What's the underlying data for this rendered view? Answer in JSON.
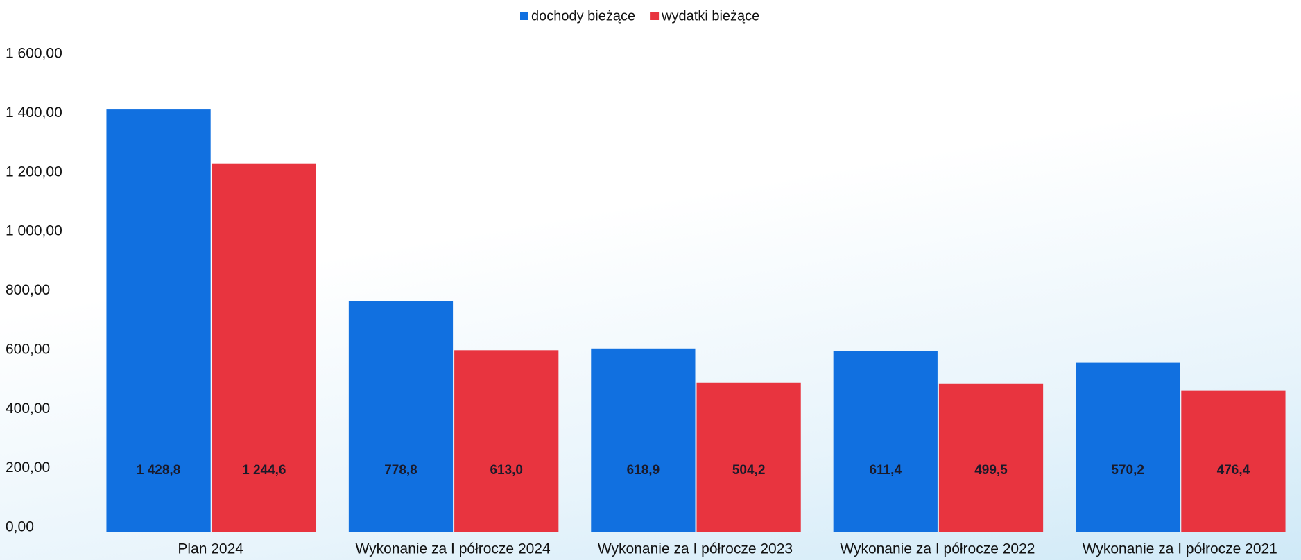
{
  "chart_data": {
    "type": "bar",
    "categories": [
      "Plan 2024",
      "Wykonanie za I półrocze 2024",
      "Wykonanie za I półrocze 2023",
      "Wykonanie za I półrocze 2022",
      "Wykonanie za I półrocze 2021"
    ],
    "series": [
      {
        "name": "dochody bieżące",
        "color": "#1170e0",
        "values": [
          1428.8,
          778.8,
          618.9,
          611.4,
          570.2
        ],
        "value_labels": [
          "1 428,8",
          "778,8",
          "618,9",
          "611,4",
          "570,2"
        ]
      },
      {
        "name": "wydatki bieżące",
        "color": "#e8343f",
        "values": [
          1244.6,
          613.0,
          504.2,
          499.5,
          476.4
        ],
        "value_labels": [
          "1 244,6",
          "613,0",
          "504,2",
          "499,5",
          "476,4"
        ]
      }
    ],
    "ylim": [
      0,
      1600
    ],
    "yticks": [
      {
        "value": 0,
        "label": "0,00"
      },
      {
        "value": 200,
        "label": "200,00"
      },
      {
        "value": 400,
        "label": "400,00"
      },
      {
        "value": 600,
        "label": "600,00"
      },
      {
        "value": 800,
        "label": "800,00"
      },
      {
        "value": 1000,
        "label": "1 000,00"
      },
      {
        "value": 1200,
        "label": "1 200,00"
      },
      {
        "value": 1400,
        "label": "1 400,00"
      },
      {
        "value": 1600,
        "label": "1 600,00"
      }
    ],
    "legend": "top"
  }
}
